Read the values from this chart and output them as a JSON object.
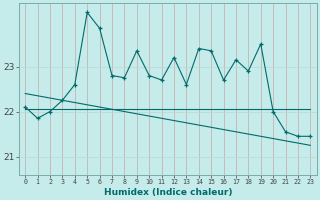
{
  "title": "",
  "xlabel": "Humidex (Indice chaleur)",
  "bg_color": "#c5ecea",
  "line_color": "#006b6b",
  "grid_color_v": "#c8a8a8",
  "grid_color_h": "#b8d8d8",
  "yticks": [
    21,
    22,
    23
  ],
  "ylim": [
    20.6,
    24.4
  ],
  "xlim": [
    -0.5,
    23.5
  ],
  "xticks": [
    0,
    1,
    2,
    3,
    4,
    5,
    6,
    7,
    8,
    9,
    10,
    11,
    12,
    13,
    14,
    15,
    16,
    17,
    18,
    19,
    20,
    21,
    22,
    23
  ],
  "line1_x": [
    0,
    1,
    2,
    3,
    4,
    5,
    6,
    7,
    8,
    9,
    10,
    11,
    12,
    13,
    14,
    15,
    16,
    17,
    18,
    19,
    20,
    21,
    22,
    23
  ],
  "line1_y": [
    22.1,
    21.85,
    22.0,
    22.25,
    22.6,
    24.2,
    23.85,
    22.8,
    22.75,
    23.35,
    22.8,
    22.7,
    23.2,
    22.6,
    23.4,
    23.35,
    22.7,
    23.15,
    22.9,
    23.5,
    22.0,
    21.55,
    21.45,
    21.45
  ],
  "line2_x": [
    0,
    23
  ],
  "line2_y": [
    22.05,
    22.05
  ],
  "line3_x": [
    0,
    23
  ],
  "line3_y": [
    22.4,
    21.25
  ]
}
